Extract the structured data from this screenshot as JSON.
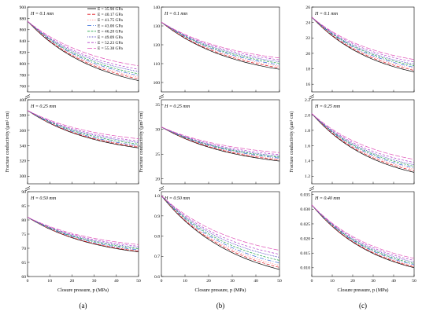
{
  "figure_labels": [
    "(a)",
    "(b)",
    "(c)"
  ],
  "legend": [
    {
      "label": "E = 35.90 GPa",
      "color": "#000000"
    },
    {
      "label": "E = 40.17 GPa",
      "color": "#e0141e"
    },
    {
      "label": "E = 41.75 GPa",
      "color": "#ff8c8c"
    },
    {
      "label": "E = 43.00 GPa",
      "color": "#2a64d8"
    },
    {
      "label": "E = 46.20 GPa",
      "color": "#22a24a"
    },
    {
      "label": "E = 49.09 GPa",
      "color": "#3a2ab8"
    },
    {
      "label": "E = 52.23 GPa",
      "color": "#b03cc8"
    },
    {
      "label": "E = 55.38 GPa",
      "color": "#e050b8"
    }
  ],
  "chart_data": [
    {
      "type": "line",
      "column_label": "(a)",
      "xlabel": "Closure pressure, p (MPa)",
      "ylabel": "Fracture conductivity (μm² cm)",
      "xlim": [
        0,
        50
      ],
      "xticks": [
        "0",
        "10",
        "20",
        "30",
        "40",
        "50"
      ],
      "panels": [
        {
          "label": "H = 0.1 mm",
          "ylim": [
            750,
            900
          ],
          "yticks": [
            "760",
            "780",
            "800",
            "820",
            "840",
            "860",
            "880",
            "900"
          ],
          "start": 875,
          "ends": [
            770,
            773,
            776,
            779,
            782,
            786,
            790,
            796
          ]
        },
        {
          "label": "H = 0.25 mm",
          "ylim": [
            290,
            400
          ],
          "yticks": [
            "300",
            "320",
            "340",
            "360",
            "380",
            "400"
          ],
          "start": 386,
          "ends": [
            337,
            338,
            339,
            340,
            342,
            344,
            346,
            349
          ]
        },
        {
          "label": "H = 0.50 mm",
          "ylim": [
            60,
            90
          ],
          "yticks": [
            "60",
            "65",
            "70",
            "75",
            "80",
            "85",
            "90"
          ],
          "start": 81,
          "ends": [
            68.7,
            68.9,
            69.1,
            69.4,
            69.8,
            70.2,
            70.7,
            71.3
          ]
        }
      ]
    },
    {
      "type": "line",
      "column_label": "(b)",
      "xlabel": "Closure pressure, p (MPa)",
      "ylabel": "Fracture conductivity (μm² cm)",
      "xlim": [
        0,
        50
      ],
      "xticks": [
        "0",
        "10",
        "20",
        "30",
        "40",
        "50"
      ],
      "panels": [
        {
          "label": "H = 0.1 mm",
          "ylim": [
            95,
            140
          ],
          "yticks": [
            "100",
            "110",
            "120",
            "130",
            "140"
          ],
          "start": 132,
          "ends": [
            107,
            107.8,
            108.6,
            109.4,
            110.2,
            111.0,
            112.0,
            113.0
          ]
        },
        {
          "label": "H = 0.25 mm",
          "ylim": [
            19,
            36
          ],
          "yticks": [
            "20",
            "25",
            "30",
            "35"
          ],
          "start": 30.5,
          "ends": [
            23.6,
            23.8,
            24.0,
            24.2,
            24.4,
            24.6,
            24.9,
            25.3
          ]
        },
        {
          "label": "H = 0.50 mm",
          "ylim": [
            0.6,
            1.02
          ],
          "yticks": [
            "0.6",
            "0.7",
            "0.8",
            "0.9",
            "1.0"
          ],
          "start": 1.0,
          "ends": [
            0.635,
            0.645,
            0.655,
            0.667,
            0.68,
            0.695,
            0.71,
            0.73
          ]
        }
      ]
    },
    {
      "type": "line",
      "column_label": "(c)",
      "xlabel": "Closure pressure, p (MPa)",
      "ylabel": "Fracture conductivity (μm² cm)",
      "xlim": [
        0,
        50
      ],
      "xticks": [
        "0",
        "10",
        "20",
        "30",
        "40",
        "50"
      ],
      "panels": [
        {
          "label": "H = 0.1 mm",
          "ylim": [
            15,
            26
          ],
          "yticks": [
            "16",
            "18",
            "20",
            "22",
            "24",
            "26"
          ],
          "start": 24.7,
          "ends": [
            17.6,
            17.8,
            18.0,
            18.2,
            18.4,
            18.6,
            18.9,
            19.2
          ]
        },
        {
          "label": "H = 0.25 mm",
          "ylim": [
            1.1,
            2.2
          ],
          "yticks": [
            "1.2",
            "1.4",
            "1.6",
            "1.8",
            "2.0",
            "2.2"
          ],
          "start": 2.02,
          "ends": [
            1.25,
            1.27,
            1.29,
            1.31,
            1.33,
            1.35,
            1.38,
            1.42
          ]
        },
        {
          "label": "H = 0.40 mm",
          "ylim": [
            0.007,
            0.036
          ],
          "yticks": [
            "0.010",
            "0.015",
            "0.020",
            "0.025",
            "0.030",
            "0.035"
          ],
          "start": 0.0315,
          "ends": [
            0.01,
            0.0103,
            0.0106,
            0.011,
            0.0114,
            0.0119,
            0.0125,
            0.0132
          ]
        }
      ]
    }
  ]
}
